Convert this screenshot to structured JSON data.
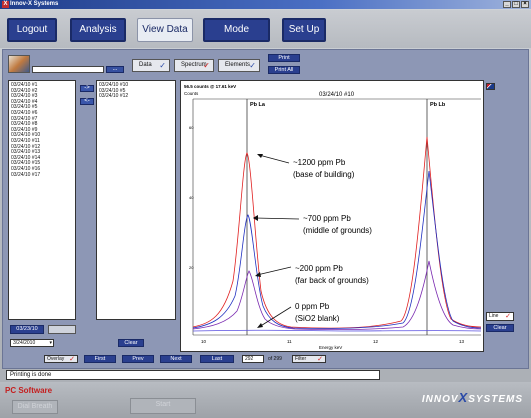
{
  "window": {
    "title": "Innov-X Systems",
    "close_glyph": "X",
    "minimize_glyph": "_",
    "maximize_glyph": "□",
    "win_close_glyph": "×"
  },
  "nav": {
    "logout": "Logout",
    "analysis": "Analysis",
    "view_data": "View Data",
    "mode": "Mode",
    "setup": "Set Up"
  },
  "toggles": {
    "data": "Data",
    "spectrum": "Spectrum",
    "elements": "Elements",
    "check": "✓"
  },
  "print": {
    "print": "Print",
    "print_all": "Print All"
  },
  "search_button": "...",
  "left_list": [
    "03/24/10 #1",
    "03/24/10 #2",
    "03/24/10 #3",
    "03/24/10 #4",
    "03/24/10 #5",
    "03/24/10 #6",
    "03/24/10 #7",
    "03/24/10 #8",
    "03/24/10 #9",
    "03/24/10 #10",
    "03/24/10 #11",
    "03/24/10 #12",
    "03/24/10 #13",
    "03/24/10 #14",
    "03/24/10 #15",
    "03/24/10 #16",
    "03/24/10 #17"
  ],
  "right_list": [
    "03/24/10 #10",
    "03/24/10 #5",
    "03/24/10 #12"
  ],
  "arrows": {
    "add": "->",
    "remove": "<-"
  },
  "date_field": "03/23/10",
  "date_select": "3/24/2010",
  "clear_left": "Clear",
  "plot": {
    "header_left": "56.5 counts @ 17.61 keV",
    "counts_label": "Counts",
    "title": "03/24/10 #10",
    "pb_la": "Pb La",
    "pb_lb": "Pb Lb",
    "xlabel": "Energy keV",
    "x_ticks": [
      "10",
      "11",
      "12",
      "13"
    ],
    "y_ticks": [
      "60",
      "40",
      "20"
    ]
  },
  "annotations": [
    {
      "line1": "~1200 ppm Pb",
      "line2": "(base of building)"
    },
    {
      "line1": "~700 ppm Pb",
      "line2": "(middle of grounds)"
    },
    {
      "line1": "~200 ppm Pb",
      "line2": "(far back of grounds)"
    },
    {
      "line1": "0 ppm Pb",
      "line2": "(SiO2 blank)"
    }
  ],
  "line_select": "Line",
  "clear_plot": "Clear",
  "bottom_bar": {
    "overlay": "Overlay",
    "first": "First",
    "prev": "Prev",
    "next": "Next",
    "last": "Last",
    "record": "292",
    "of": "of 299",
    "filter": "Filter"
  },
  "status": "Printing is done",
  "footer": {
    "pc_software": "PC Software",
    "dial_breath": "Dial Breath",
    "start": "Start",
    "brand_pre": "INNOV",
    "brand_x": "X",
    "brand_post": "SYSTEMS"
  },
  "colors": {
    "red": "#e02020",
    "blue": "#2030c0",
    "purple": "#7a2ab0",
    "violet": "#5a50e0"
  }
}
